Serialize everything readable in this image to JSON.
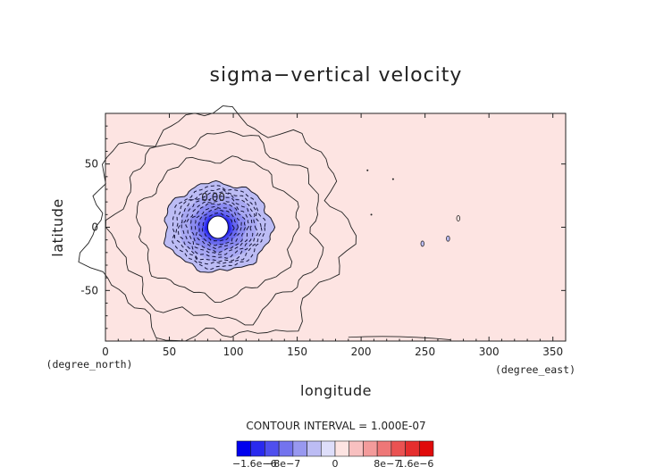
{
  "chart_data": {
    "type": "heatmap",
    "title": "sigma−vertical velocity",
    "xlabel": "longitude",
    "ylabel": "latitude",
    "x_unit_label": "(degree_east)",
    "y_unit_label": "(degree_north)",
    "xlim": [
      0,
      360
    ],
    "ylim": [
      -90,
      90
    ],
    "x_ticks": [
      0,
      50,
      100,
      150,
      200,
      250,
      300,
      350
    ],
    "y_ticks": [
      -50,
      0,
      50
    ],
    "background_value_color": "#fde4e2",
    "contour_interval_text": "CONTOUR INTERVAL = 1.000E-07",
    "contour_label": "0.00",
    "vortex": {
      "center": [
        88,
        0
      ],
      "hole_radius_deg": 8,
      "negative_region_radius_deg": [
        42,
        35
      ],
      "zero_contours_deg": [
        [
          44,
          37
        ],
        [
          62,
          55
        ],
        [
          80,
          73
        ],
        [
          100,
          88
        ]
      ],
      "dashed_contours_deg": [
        [
          12,
          11
        ],
        [
          15,
          14
        ],
        [
          18,
          16
        ],
        [
          21,
          19
        ],
        [
          24,
          21
        ],
        [
          27,
          24
        ],
        [
          30,
          27
        ],
        [
          33,
          29
        ],
        [
          36,
          32
        ]
      ]
    },
    "small_features": [
      {
        "lon": 248,
        "lat": -13,
        "kind": "negative-blob"
      },
      {
        "lon": 268,
        "lat": -9,
        "kind": "negative-blob"
      },
      {
        "lon": 276,
        "lat": 7,
        "kind": "positive-blob"
      },
      {
        "lon": 205,
        "lat": 45,
        "kind": "dot"
      },
      {
        "lon": 225,
        "lat": 38,
        "kind": "dot"
      },
      {
        "lon": 208,
        "lat": 10,
        "kind": "dot"
      }
    ],
    "colorbar": {
      "colors": [
        "#0000ee",
        "#2a2aee",
        "#4f4fee",
        "#7373ee",
        "#9898f0",
        "#bcbcf4",
        "#dedefa",
        "#fde4e2",
        "#f8c0c0",
        "#f39b9b",
        "#ee7777",
        "#ea5252",
        "#e52e2e",
        "#e00a0a"
      ],
      "tick_labels": [
        "−1.6e−6",
        "−8e−7",
        "0",
        "8e−7",
        "1.6e−6"
      ]
    }
  }
}
